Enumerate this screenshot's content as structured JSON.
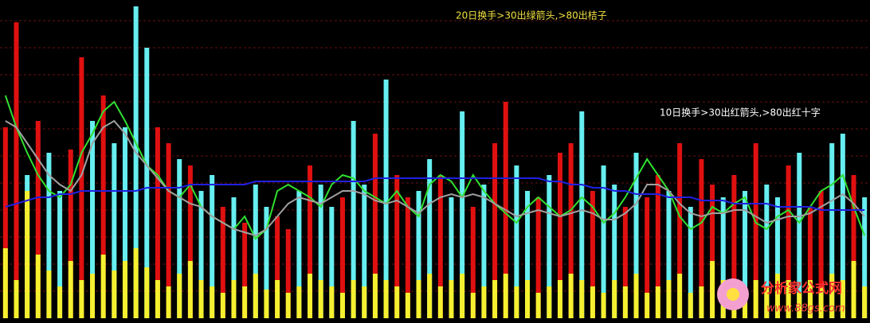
{
  "chart_data": {
    "type": "bar",
    "annotations": [
      "20日换手>30出绿箭头,>80出桔子",
      "10日换手>30出红箭头,>80出红十字"
    ],
    "watermark": {
      "title": "分析家公式网",
      "url": "www.88gs.com"
    },
    "ylim": [
      0,
      100
    ],
    "yticks": [
      8.5,
      17,
      25.5,
      34,
      42.5,
      51,
      59.5,
      68,
      76.5,
      85,
      93.5
    ],
    "grid": true,
    "series": [
      {
        "type": "bar",
        "color": "#66eef0",
        "values": [
          null,
          null,
          45,
          null,
          52,
          40,
          null,
          null,
          62,
          null,
          55,
          60,
          98,
          85,
          null,
          null,
          50,
          null,
          40,
          45,
          null,
          38,
          null,
          42,
          35,
          null,
          null,
          40,
          null,
          42,
          35,
          null,
          62,
          42,
          null,
          75,
          null,
          null,
          40,
          50,
          null,
          38,
          65,
          null,
          42,
          null,
          null,
          48,
          40,
          null,
          45,
          null,
          null,
          65,
          null,
          48,
          42,
          null,
          52,
          null,
          null,
          40,
          null,
          35,
          null,
          null,
          38,
          null,
          40,
          null,
          42,
          38,
          null,
          52,
          null,
          null,
          55,
          58,
          null,
          38
        ]
      },
      {
        "type": "bar",
        "color": "#e01010",
        "values": [
          60,
          93,
          null,
          62,
          null,
          null,
          53,
          82,
          null,
          70,
          null,
          null,
          null,
          null,
          60,
          55,
          null,
          48,
          null,
          null,
          35,
          null,
          30,
          null,
          null,
          32,
          28,
          null,
          48,
          null,
          null,
          38,
          null,
          null,
          58,
          null,
          45,
          38,
          null,
          null,
          45,
          null,
          null,
          35,
          null,
          55,
          68,
          null,
          null,
          38,
          null,
          52,
          55,
          null,
          40,
          null,
          null,
          35,
          null,
          38,
          45,
          null,
          55,
          null,
          50,
          42,
          null,
          45,
          null,
          55,
          null,
          null,
          48,
          null,
          35,
          40,
          null,
          null,
          45,
          null
        ]
      },
      {
        "type": "bar",
        "color": "#f5f030",
        "values": [
          22,
          12,
          40,
          20,
          15,
          10,
          18,
          12,
          14,
          20,
          15,
          18,
          22,
          16,
          12,
          10,
          14,
          18,
          12,
          10,
          8,
          12,
          10,
          14,
          9,
          12,
          8,
          10,
          14,
          12,
          10,
          8,
          12,
          10,
          14,
          12,
          10,
          8,
          12,
          14,
          10,
          12,
          14,
          8,
          10,
          12,
          14,
          10,
          12,
          8,
          10,
          12,
          14,
          12,
          10,
          8,
          12,
          10,
          14,
          8,
          10,
          12,
          14,
          8,
          10,
          18,
          12,
          10,
          8,
          12,
          10,
          14,
          12,
          8,
          12,
          10,
          14,
          12,
          18,
          10
        ]
      },
      {
        "type": "line",
        "color": "#30e030",
        "values": [
          70,
          60,
          52,
          45,
          40,
          38,
          42,
          52,
          58,
          65,
          68,
          62,
          55,
          48,
          45,
          40,
          38,
          42,
          35,
          32,
          30,
          28,
          32,
          25,
          28,
          40,
          42,
          40,
          38,
          35,
          42,
          45,
          44,
          40,
          38,
          36,
          40,
          35,
          32,
          42,
          45,
          43,
          38,
          45,
          40,
          36,
          33,
          30,
          35,
          38,
          35,
          32,
          34,
          38,
          35,
          30,
          33,
          38,
          44,
          50,
          45,
          40,
          32,
          28,
          30,
          35,
          33,
          36,
          38,
          30,
          28,
          32,
          34,
          30,
          35,
          40,
          42,
          45,
          35,
          26
        ]
      },
      {
        "type": "line",
        "color": "#a0a0a0",
        "values": [
          62,
          60,
          55,
          50,
          45,
          42,
          40,
          45,
          55,
          60,
          62,
          58,
          52,
          48,
          44,
          40,
          38,
          36,
          35,
          32,
          30,
          28,
          27,
          26,
          28,
          32,
          36,
          38,
          37,
          36,
          38,
          40,
          40,
          39,
          37,
          36,
          37,
          35,
          33,
          36,
          38,
          39,
          38,
          39,
          38,
          36,
          34,
          32,
          33,
          34,
          33,
          32,
          33,
          34,
          33,
          31,
          31,
          33,
          36,
          42,
          42,
          40,
          36,
          33,
          32,
          33,
          33,
          34,
          34,
          32,
          30,
          31,
          32,
          32,
          33,
          35,
          37,
          39,
          36,
          32
        ]
      },
      {
        "type": "line",
        "color": "#2020e0",
        "values": [
          35,
          36,
          37,
          38,
          38,
          39,
          39,
          40,
          40,
          40,
          40,
          40,
          40,
          41,
          41,
          41,
          41,
          42,
          42,
          42,
          42,
          42,
          42,
          43,
          43,
          43,
          43,
          43,
          43,
          43,
          43,
          43,
          43,
          43,
          44,
          44,
          44,
          44,
          44,
          44,
          44,
          44,
          44,
          44,
          44,
          44,
          44,
          44,
          44,
          44,
          43,
          43,
          42,
          42,
          41,
          41,
          40,
          40,
          39,
          39,
          39,
          38,
          38,
          38,
          37,
          37,
          37,
          36,
          36,
          36,
          36,
          35,
          35,
          35,
          35,
          34,
          34,
          34,
          34,
          34
        ]
      }
    ]
  }
}
